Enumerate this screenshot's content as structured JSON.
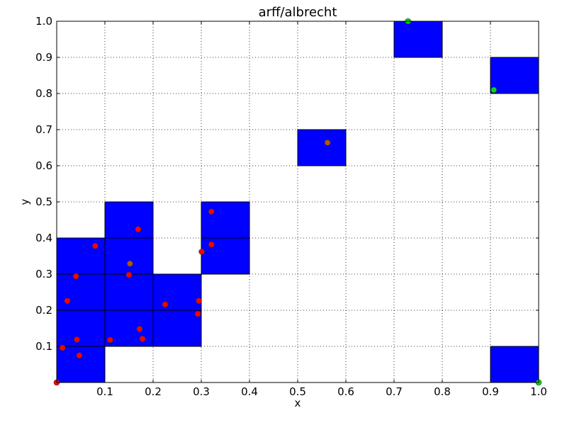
{
  "chart_data": {
    "type": "scatter",
    "title": "arff/albrecht",
    "xlabel": "x",
    "ylabel": "y",
    "xlim": [
      0,
      1
    ],
    "ylim": [
      0,
      1
    ],
    "grid": true,
    "x_ticks": [
      "0.1",
      "0.2",
      "0.3",
      "0.4",
      "0.5",
      "0.6",
      "0.7",
      "0.8",
      "0.9",
      "1.0"
    ],
    "y_ticks": [
      "0.1",
      "0.2",
      "0.3",
      "0.4",
      "0.5",
      "0.6",
      "0.7",
      "0.8",
      "0.9",
      "1.0"
    ],
    "x_tick_values": [
      0.1,
      0.2,
      0.3,
      0.4,
      0.5,
      0.6,
      0.7,
      0.8,
      0.9,
      1.0
    ],
    "y_tick_values": [
      0.1,
      0.2,
      0.3,
      0.4,
      0.5,
      0.6,
      0.7,
      0.8,
      0.9,
      1.0
    ],
    "cell_color": "#0000ff",
    "cells": [
      {
        "x": 0.0,
        "y": 0.0,
        "w": 0.1,
        "h": 0.1
      },
      {
        "x": 0.0,
        "y": 0.1,
        "w": 0.1,
        "h": 0.1
      },
      {
        "x": 0.0,
        "y": 0.2,
        "w": 0.1,
        "h": 0.1
      },
      {
        "x": 0.0,
        "y": 0.3,
        "w": 0.1,
        "h": 0.1
      },
      {
        "x": 0.1,
        "y": 0.1,
        "w": 0.1,
        "h": 0.1
      },
      {
        "x": 0.1,
        "y": 0.2,
        "w": 0.1,
        "h": 0.1
      },
      {
        "x": 0.1,
        "y": 0.3,
        "w": 0.1,
        "h": 0.1
      },
      {
        "x": 0.1,
        "y": 0.4,
        "w": 0.1,
        "h": 0.1
      },
      {
        "x": 0.2,
        "y": 0.1,
        "w": 0.1,
        "h": 0.1
      },
      {
        "x": 0.2,
        "y": 0.2,
        "w": 0.1,
        "h": 0.1
      },
      {
        "x": 0.3,
        "y": 0.3,
        "w": 0.1,
        "h": 0.1
      },
      {
        "x": 0.3,
        "y": 0.4,
        "w": 0.1,
        "h": 0.1
      },
      {
        "x": 0.5,
        "y": 0.6,
        "w": 0.1,
        "h": 0.1
      },
      {
        "x": 0.7,
        "y": 0.9,
        "w": 0.1,
        "h": 0.1
      },
      {
        "x": 0.9,
        "y": 0.8,
        "w": 0.1,
        "h": 0.1
      },
      {
        "x": 0.9,
        "y": 0.0,
        "w": 0.1,
        "h": 0.1
      }
    ],
    "series": [
      {
        "color": "#ff0000",
        "points": [
          [
            0.0,
            0.0
          ],
          [
            0.012,
            0.096
          ],
          [
            0.022,
            0.226
          ],
          [
            0.042,
            0.119
          ],
          [
            0.047,
            0.075
          ],
          [
            0.04,
            0.294
          ],
          [
            0.08,
            0.378
          ],
          [
            0.111,
            0.118
          ],
          [
            0.15,
            0.298
          ],
          [
            0.169,
            0.424
          ],
          [
            0.172,
            0.148
          ],
          [
            0.178,
            0.121
          ],
          [
            0.225,
            0.216
          ],
          [
            0.293,
            0.19
          ],
          [
            0.295,
            0.226
          ],
          [
            0.301,
            0.362
          ],
          [
            0.321,
            0.382
          ],
          [
            0.321,
            0.473
          ]
        ]
      },
      {
        "color": "#b05a00",
        "points": [
          [
            0.152,
            0.329
          ],
          [
            0.562,
            0.664
          ]
        ]
      },
      {
        "color": "#00dd00",
        "points": [
          [
            0.729,
            1.0
          ],
          [
            0.907,
            0.81
          ],
          [
            1.0,
            0.0
          ]
        ]
      }
    ]
  }
}
